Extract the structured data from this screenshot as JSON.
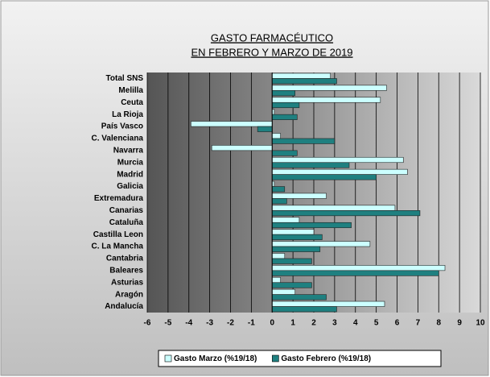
{
  "chart_data": {
    "type": "hbar",
    "title": [
      "GASTO FARMACÉUTICO",
      "EN FEBRERO Y MARZO DE 2019"
    ],
    "categories": [
      "Total SNS",
      "Melilla",
      "Ceuta",
      "La Rioja",
      "País Vasco",
      "C. Valenciana",
      "Navarra",
      "Murcia",
      "Madrid",
      "Galicia",
      "Extremadura",
      "Canarias",
      "Cataluña",
      "Castilla Leon",
      "C. La Mancha",
      "Cantabria",
      "Baleares",
      "Asturias",
      "Aragón",
      "Andalucía"
    ],
    "series": [
      {
        "name": "Gasto Marzo  (%19/18)",
        "color": "#ccffff",
        "values": [
          2.8,
          5.5,
          5.2,
          0.1,
          -3.9,
          0.4,
          -2.9,
          6.3,
          6.5,
          0.1,
          2.6,
          5.9,
          1.3,
          2.0,
          4.7,
          0.6,
          8.3,
          0.4,
          1.1,
          5.4
        ]
      },
      {
        "name": "Gasto Febrero (%19/18)",
        "color": "#1f8080",
        "values": [
          3.1,
          1.1,
          1.3,
          1.2,
          -0.7,
          3.0,
          1.2,
          3.7,
          5.0,
          0.6,
          0.7,
          7.1,
          3.8,
          2.4,
          2.3,
          1.9,
          8.0,
          1.9,
          2.6,
          3.1
        ]
      }
    ],
    "xlim": [
      -6,
      10
    ],
    "xticks": [
      -6,
      -5,
      -4,
      -3,
      -2,
      -1,
      0,
      1,
      2,
      3,
      4,
      5,
      6,
      7,
      8,
      9,
      10
    ],
    "grid": true,
    "legend": "bottom"
  }
}
